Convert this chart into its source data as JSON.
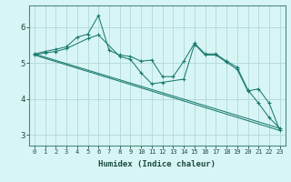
{
  "xlabel": "Humidex (Indice chaleur)",
  "bg_color": "#d8f5f5",
  "grid_color": "#afd8d8",
  "line_color": "#1a7a6e",
  "xlim": [
    -0.5,
    23.5
  ],
  "ylim": [
    2.7,
    6.6
  ],
  "xticks": [
    0,
    1,
    2,
    3,
    4,
    5,
    6,
    7,
    8,
    9,
    10,
    11,
    12,
    13,
    14,
    15,
    16,
    17,
    18,
    19,
    20,
    21,
    22,
    23
  ],
  "yticks": [
    3,
    4,
    5,
    6
  ],
  "series_main1": {
    "x": [
      0,
      1,
      2,
      3,
      4,
      5,
      6,
      7,
      8,
      9,
      10,
      11,
      12,
      13,
      14,
      15,
      16,
      17,
      18,
      19,
      20,
      21,
      22,
      23
    ],
    "y": [
      5.25,
      5.32,
      5.38,
      5.45,
      5.72,
      5.8,
      6.32,
      5.35,
      5.22,
      5.18,
      5.05,
      5.08,
      4.62,
      4.62,
      5.05,
      5.55,
      5.25,
      5.25,
      5.05,
      4.88,
      4.25,
      3.88,
      3.48,
      3.18
    ]
  },
  "series_main2": {
    "x": [
      0,
      1,
      2,
      3,
      5,
      6,
      8,
      9,
      10,
      11,
      12,
      14,
      15,
      16,
      17,
      18,
      19,
      20,
      21,
      22,
      23
    ],
    "y": [
      5.22,
      5.28,
      5.32,
      5.4,
      5.68,
      5.78,
      5.18,
      5.1,
      4.72,
      4.42,
      4.46,
      4.55,
      5.52,
      5.22,
      5.22,
      5.02,
      4.82,
      4.22,
      4.28,
      3.88,
      3.12
    ]
  },
  "series_trend1": {
    "x": [
      0,
      23
    ],
    "y": [
      5.25,
      3.18
    ]
  },
  "series_trend2": {
    "x": [
      0,
      23
    ],
    "y": [
      5.22,
      3.12
    ]
  }
}
